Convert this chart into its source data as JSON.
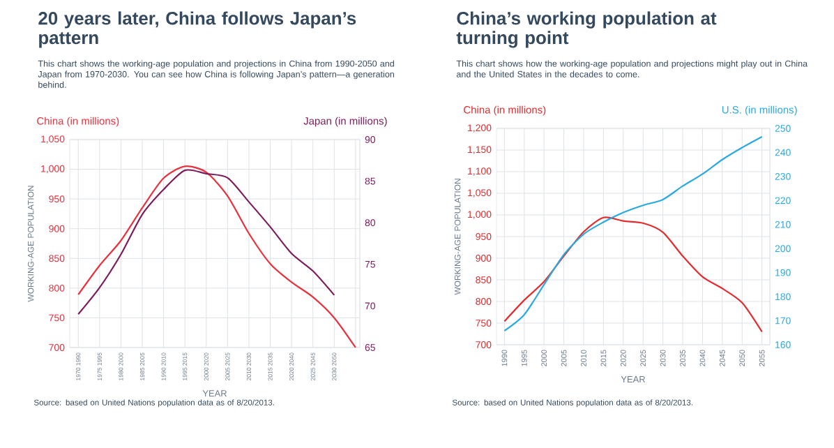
{
  "chart_data": [
    {
      "type": "line",
      "title": "20 years later, China follows Japan’s pattern",
      "subtitle": "This chart shows the working-age population and projections in China from 1990-2050 and Japan from 1970-2030. You can see how China is following Japan’s pattern—a generation behind.",
      "xlabel": "YEAR",
      "ylabel": "WORKING-AGE POPULATION",
      "categories": [
        "1970 1990",
        "1975 1995",
        "1980 2000",
        "1985 2005",
        "1990 2010",
        "1995 2015",
        "2000 2020",
        "2005 2025",
        "2010 2030",
        "2015 2035",
        "2020 2040",
        "2025 2045",
        "2030 2050",
        null
      ],
      "series": [
        {
          "name": "China (in millions)",
          "color": "#e8313c",
          "values": [
            789,
            838,
            880,
            935,
            985,
            1005,
            995,
            955,
            892,
            841,
            810,
            785,
            750,
            700
          ]
        },
        {
          "name": "Japan (in millions)",
          "color": "#7d1d5b",
          "axis": "y2",
          "values": [
            69,
            72.2,
            76.2,
            81,
            84,
            86.3,
            85.9,
            85.4,
            82.5,
            79.5,
            76.3,
            74.2,
            71.3,
            null
          ]
        }
      ],
      "ylim": [
        700,
        1050
      ],
      "yticks": [
        700,
        750,
        800,
        850,
        900,
        950,
        {
          "value": 1000,
          "label": "1,000"
        },
        {
          "value": 1050,
          "label": "1,050"
        }
      ],
      "y2lim": [
        65,
        90
      ],
      "y2ticks": [
        65,
        70,
        75,
        80,
        85,
        90
      ],
      "grid": true,
      "annotations": [
        "Source: based on United Nations population data as of 8/20/2013."
      ]
    },
    {
      "type": "line",
      "title": "China’s working population at turning point",
      "subtitle": "This chart shows how the working-age population and projections might play out in China and the United States in the decades to come.",
      "xlabel": "YEAR",
      "ylabel": "WORKING-AGE POPULATION",
      "x": [
        1990,
        1995,
        2000,
        2005,
        2010,
        2015,
        2020,
        2025,
        2030,
        2035,
        2040,
        2045,
        2050,
        2055
      ],
      "series": [
        {
          "name": "China (in millions)",
          "color": "#e42b2e",
          "values": [
            754,
            803,
            846,
            905,
            961,
            994,
            986,
            981,
            960,
            905,
            857,
            830,
            797,
            730
          ]
        },
        {
          "name": "U.S. (in millions)",
          "color": "#2aa9df",
          "axis": "y2",
          "values": [
            165.8,
            172.5,
            185,
            197.5,
            206,
            211,
            215,
            218,
            220.4,
            226,
            231,
            237,
            242,
            246.5
          ]
        }
      ],
      "xlim": [
        1988,
        2057
      ],
      "xticks": [
        1990,
        1995,
        2000,
        2005,
        2010,
        2015,
        2020,
        2025,
        2030,
        2035,
        2040,
        2045,
        2050,
        2055
      ],
      "ylim": [
        700,
        1200
      ],
      "yticks": [
        700,
        750,
        800,
        850,
        900,
        950,
        {
          "value": 1000,
          "label": "1,000"
        },
        {
          "value": 1050,
          "label": "1,050"
        },
        {
          "value": 1100,
          "label": "1,100"
        },
        {
          "value": 1150,
          "label": "1,150"
        },
        {
          "value": 1200,
          "label": "1,200"
        }
      ],
      "y2lim": [
        160,
        250
      ],
      "y2ticks": [
        160,
        170,
        180,
        190,
        200,
        210,
        220,
        230,
        240,
        250
      ],
      "grid": true,
      "annotations": [
        "Source: based on United Nations population data as of 8/20/2013."
      ]
    }
  ]
}
